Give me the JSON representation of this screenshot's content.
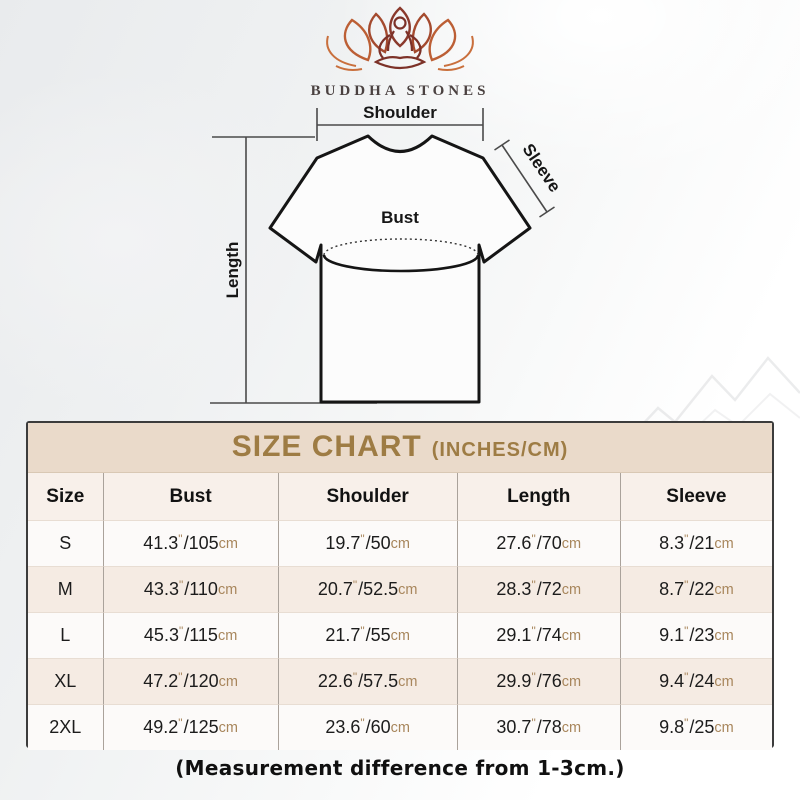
{
  "logo": {
    "brand": "BUDDHA STONES"
  },
  "diagram": {
    "labels": {
      "shoulder": "Shoulder",
      "sleeve": "Sleeve",
      "bust": "Bust",
      "length": "Length"
    }
  },
  "size_chart": {
    "title": "SIZE CHART",
    "title_suffix": "(INCHES/CM)",
    "columns": [
      "Size",
      "Bust",
      "Shoulder",
      "Length",
      "Sleeve"
    ],
    "unit_inch_mark": "\"",
    "unit_cm": "cm",
    "rows": [
      {
        "size": "S",
        "bust": {
          "in": "41.3",
          "cm": "105"
        },
        "shoulder": {
          "in": "19.7",
          "cm": "50"
        },
        "length": {
          "in": "27.6",
          "cm": "70"
        },
        "sleeve": {
          "in": "8.3",
          "cm": "21"
        }
      },
      {
        "size": "M",
        "bust": {
          "in": "43.3",
          "cm": "110"
        },
        "shoulder": {
          "in": "20.7",
          "cm": "52.5"
        },
        "length": {
          "in": "28.3",
          "cm": "72"
        },
        "sleeve": {
          "in": "8.7",
          "cm": "22"
        }
      },
      {
        "size": "L",
        "bust": {
          "in": "45.3",
          "cm": "115"
        },
        "shoulder": {
          "in": "21.7",
          "cm": "55"
        },
        "length": {
          "in": "29.1",
          "cm": "74"
        },
        "sleeve": {
          "in": "9.1",
          "cm": "23"
        }
      },
      {
        "size": "XL",
        "bust": {
          "in": "47.2",
          "cm": "120"
        },
        "shoulder": {
          "in": "22.6",
          "cm": "57.5"
        },
        "length": {
          "in": "29.9",
          "cm": "76"
        },
        "sleeve": {
          "in": "9.4",
          "cm": "24"
        }
      },
      {
        "size": "2XL",
        "bust": {
          "in": "49.2",
          "cm": "125"
        },
        "shoulder": {
          "in": "23.6",
          "cm": "60"
        },
        "length": {
          "in": "30.7",
          "cm": "78"
        },
        "sleeve": {
          "in": "9.8",
          "cm": "25"
        }
      }
    ]
  },
  "footer": {
    "note": "(Measurement difference from 1-3cm.)"
  },
  "colors": {
    "title_gold": "#9e7c44",
    "band_bg": "#eadaca",
    "unit_tan": "#a8865c",
    "row_shade": "#f5ebe3",
    "table_border": "#3c3c3c",
    "logo_rust": "#b05a33",
    "logo_maroon": "#7c3128"
  },
  "chart_data": {
    "type": "table",
    "title": "SIZE CHART (INCHES/CM)",
    "columns": [
      "Size",
      "Bust",
      "Shoulder",
      "Length",
      "Sleeve"
    ],
    "rows": [
      [
        "S",
        "41.3\"/105cm",
        "19.7\"/50cm",
        "27.6\"/70cm",
        "8.3\"/21cm"
      ],
      [
        "M",
        "43.3\"/110cm",
        "20.7\"/52.5cm",
        "28.3\"/72cm",
        "8.7\"/22cm"
      ],
      [
        "L",
        "45.3\"/115cm",
        "21.7\"/55cm",
        "29.1\"/74cm",
        "9.1\"/23cm"
      ],
      [
        "XL",
        "47.2\"/120cm",
        "22.6\"/57.5cm",
        "29.9\"/76cm",
        "9.4\"/24cm"
      ],
      [
        "2XL",
        "49.2\"/125cm",
        "23.6\"/60cm",
        "30.7\"/78cm",
        "9.8\"/25cm"
      ]
    ],
    "note": "(Measurement difference from 1-3cm.)"
  }
}
